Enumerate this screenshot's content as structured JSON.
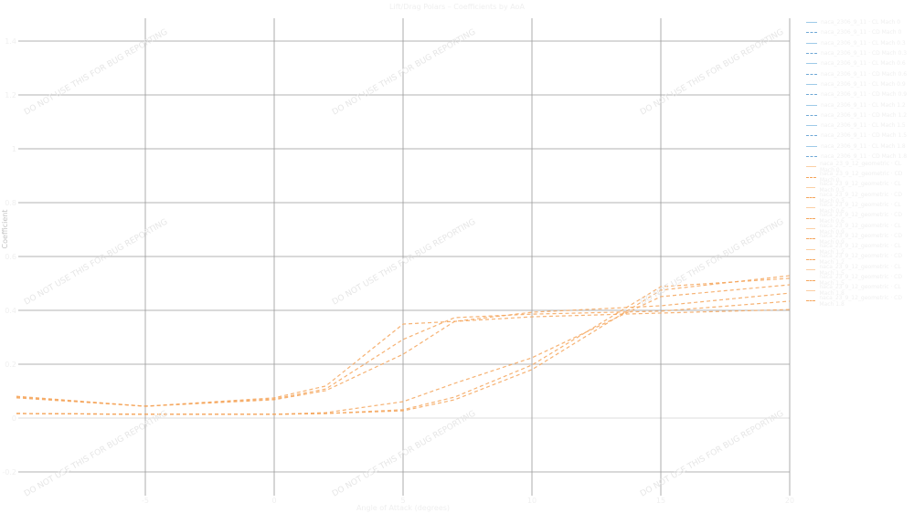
{
  "chart_data": {
    "type": "line",
    "title": "Lift/Drag Polars – Coefficients by AoA",
    "xlabel": "Angle of Attack (degrees)",
    "ylabel": "Coefficient",
    "xlim": [
      -10,
      20
    ],
    "ylim": [
      -0.25,
      1.45
    ],
    "xticks": [
      -5,
      0,
      5,
      10,
      15,
      20
    ],
    "yticks": [
      -0.2,
      0,
      0.2,
      0.4,
      0.6,
      0.8,
      1.0,
      1.2,
      1.4
    ],
    "grid": true,
    "legend_position": "right",
    "x": [
      -10,
      -5,
      0,
      2,
      5,
      7,
      10,
      15,
      20
    ],
    "series": [
      {
        "color": "#f5a45a",
        "style": "dashed",
        "values": [
          0.075,
          0.044,
          0.075,
          0.119,
          0.349,
          0.359,
          0.376,
          0.39,
          0.403
        ]
      },
      {
        "color": "#f5a45a",
        "style": "dashed",
        "values": [
          0.078,
          0.044,
          0.071,
          0.108,
          0.292,
          0.373,
          0.386,
          0.397,
          0.434
        ]
      },
      {
        "color": "#f5a45a",
        "style": "dashed",
        "values": [
          0.081,
          0.044,
          0.068,
          0.102,
          0.237,
          0.359,
          0.393,
          0.417,
          0.464
        ]
      },
      {
        "color": "#f5a45a",
        "style": "dashed",
        "values": [
          0.017,
          0.014,
          0.014,
          0.02,
          0.061,
          0.129,
          0.224,
          0.451,
          0.495
        ]
      },
      {
        "color": "#f5a45a",
        "style": "dashed",
        "values": [
          0.017,
          0.014,
          0.014,
          0.017,
          0.031,
          0.078,
          0.197,
          0.488,
          0.519
        ]
      },
      {
        "color": "#f5a45a",
        "style": "dashed",
        "values": [
          0.017,
          0.014,
          0.014,
          0.017,
          0.027,
          0.068,
          0.18,
          0.475,
          0.529
        ]
      }
    ],
    "legend": [
      {
        "label": "naca_2306_9_11 · CL Mach 0",
        "color": "#9ecae8",
        "style": "solid"
      },
      {
        "label": "naca_2306_9_11 · CD Mach 0",
        "color": "#6fa8d6",
        "style": "dashed"
      },
      {
        "label": "naca_2306_9_11 · CL Mach 0.3",
        "color": "#9ecae8",
        "style": "solid"
      },
      {
        "label": "naca_2306_9_11 · CD Mach 0.3",
        "color": "#6fa8d6",
        "style": "dashed"
      },
      {
        "label": "naca_2306_9_11 · CL Mach 0.6",
        "color": "#9ecae8",
        "style": "solid"
      },
      {
        "label": "naca_2306_9_11 · CD Mach 0.6",
        "color": "#6fa8d6",
        "style": "dashed"
      },
      {
        "label": "naca_2306_9_11 · CL Mach 0.9",
        "color": "#9ecae8",
        "style": "solid"
      },
      {
        "label": "naca_2306_9_11 · CD Mach 0.9",
        "color": "#6fa8d6",
        "style": "dashed"
      },
      {
        "label": "naca_2306_9_11 · CL Mach 1.2",
        "color": "#9ecae8",
        "style": "solid"
      },
      {
        "label": "naca_2306_9_11 · CD Mach 1.2",
        "color": "#6fa8d6",
        "style": "dashed"
      },
      {
        "label": "naca_2306_9_11 · CL Mach 1.5",
        "color": "#9ecae8",
        "style": "solid"
      },
      {
        "label": "naca_2306_9_11 · CD Mach 1.5",
        "color": "#6fa8d6",
        "style": "dashed"
      },
      {
        "label": "naca_2306_9_11 · CL Mach 1.8",
        "color": "#9ecae8",
        "style": "solid"
      },
      {
        "label": "naca_2306_9_11 · CD Mach 1.8",
        "color": "#6fa8d6",
        "style": "dashed"
      },
      {
        "label": "naca_23_9_12_geometric · CL Mach 0",
        "color": "#fbcfa4",
        "style": "solid"
      },
      {
        "label": "naca_23_9_12_geometric · CD Mach 0",
        "color": "#f5a45a",
        "style": "dashed"
      },
      {
        "label": "naca_23_9_12_geometric · CL Mach 0.3",
        "color": "#fbcfa4",
        "style": "solid"
      },
      {
        "label": "naca_23_9_12_geometric · CD Mach 0.3",
        "color": "#f5a45a",
        "style": "dashed"
      },
      {
        "label": "naca_23_9_12_geometric · CL Mach 0.6",
        "color": "#fbcfa4",
        "style": "solid"
      },
      {
        "label": "naca_23_9_12_geometric · CD Mach 0.6",
        "color": "#f5a45a",
        "style": "dashed"
      },
      {
        "label": "naca_23_9_12_geometric · CL Mach 0.9",
        "color": "#fbcfa4",
        "style": "solid"
      },
      {
        "label": "naca_23_9_12_geometric · CD Mach 0.9",
        "color": "#f5a45a",
        "style": "dashed"
      },
      {
        "label": "naca_23_9_12_geometric · CL Mach 1.2",
        "color": "#fbcfa4",
        "style": "solid"
      },
      {
        "label": "naca_23_9_12_geometric · CD Mach 1.2",
        "color": "#f5a45a",
        "style": "dashed"
      },
      {
        "label": "naca_23_9_12_geometric · CL Mach 1.5",
        "color": "#fbcfa4",
        "style": "solid"
      },
      {
        "label": "naca_23_9_12_geometric · CD Mach 1.5",
        "color": "#f5a45a",
        "style": "dashed"
      },
      {
        "label": "naca_23_9_12_geometric · CL Mach 1.8",
        "color": "#fbcfa4",
        "style": "solid"
      },
      {
        "label": "naca_23_9_12_geometric · CD Mach 1.8",
        "color": "#f5a45a",
        "style": "dashed"
      }
    ]
  },
  "watermark": "DO NOT USE THIS FOR BUG REPORTING"
}
